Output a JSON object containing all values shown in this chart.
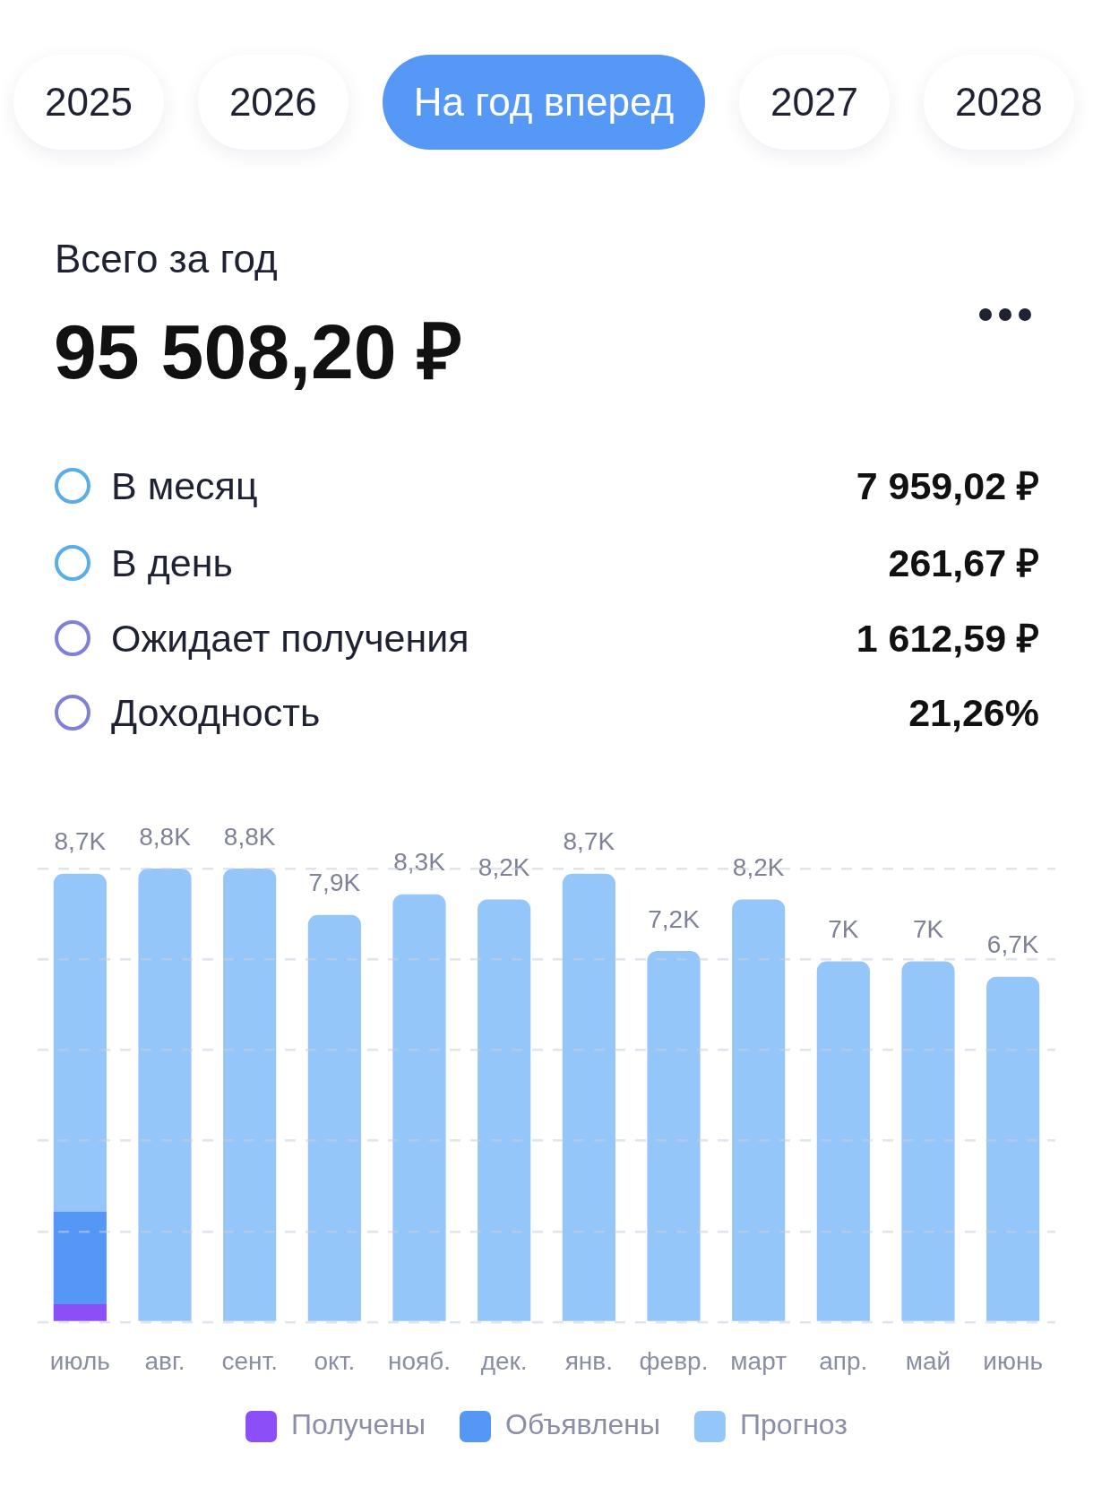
{
  "chart_data": {
    "type": "bar",
    "title": "Всего за год",
    "subtitle": "95 508,20 ₽",
    "annotations": [
      "2025",
      "2026",
      "На год вперед",
      "2027",
      "2028",
      "В месяц",
      "7 959,02 ₽",
      "В день",
      "261,67 ₽",
      "Ожидает получения",
      "1 612,59 ₽",
      "Доходность",
      "21,26%"
    ],
    "categories": [
      "июль",
      "авг.",
      "сент.",
      "окт.",
      "нояб.",
      "дек.",
      "янв.",
      "февр.",
      "март",
      "апр.",
      "май",
      "июнь"
    ],
    "series": [
      {
        "name": "Получены",
        "color": "#8b4ef7",
        "values": [
          350,
          null,
          null,
          null,
          null,
          null,
          null,
          null,
          null,
          null,
          null,
          null
        ]
      },
      {
        "name": "Объявлены",
        "color": "#5597f5",
        "values": [
          1800,
          null,
          null,
          null,
          null,
          null,
          null,
          null,
          null,
          null,
          null,
          null
        ]
      },
      {
        "name": "Прогноз",
        "color": "#95c6fa",
        "values": [
          6550,
          8800,
          8800,
          7900,
          8300,
          8200,
          8700,
          7200,
          8200,
          7000,
          7000,
          6700
        ],
        "value_labels": [
          null,
          "8,8K",
          "8,8K",
          "7,9K",
          "8,3K",
          "8,2K",
          "8,7K",
          "7,2K",
          "8,2K",
          "7K",
          "7K",
          "6,7K"
        ]
      }
    ],
    "totals": [
      "8,7K",
      null,
      null,
      null,
      null,
      null,
      null,
      null,
      null,
      null,
      null,
      null
    ],
    "stacked": true,
    "ylim": [
      0,
      8800
    ],
    "yticks": [
      {
        "value": 0,
        "label": null
      },
      {
        "value": 1760,
        "label": null
      },
      {
        "value": 3520,
        "label": null
      },
      {
        "value": 5280,
        "label": null
      },
      {
        "value": 7040,
        "label": null
      },
      {
        "value": 8800,
        "label": null
      }
    ],
    "grid": "y",
    "tick_labels": "x",
    "legend": "bottom"
  }
}
